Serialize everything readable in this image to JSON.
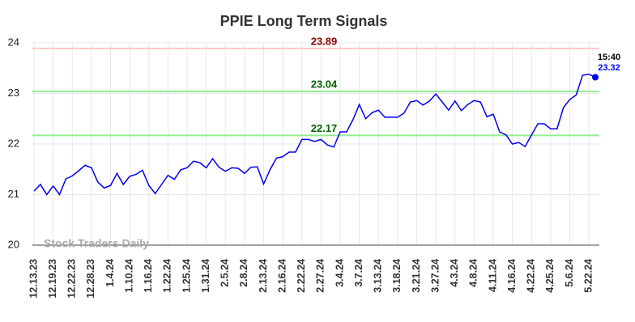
{
  "chart_data": {
    "type": "line",
    "title": "PPIE Long Term Signals",
    "categories": [
      "12.13.23",
      null,
      null,
      "12.19.23",
      null,
      null,
      "12.22.23",
      null,
      null,
      "12.28.23",
      null,
      null,
      "1.4.24",
      null,
      null,
      "1.10.24",
      null,
      null,
      "1.16.24",
      null,
      null,
      "1.22.24",
      null,
      null,
      "1.25.24",
      null,
      null,
      "1.31.24",
      null,
      null,
      "2.5.24",
      null,
      null,
      "2.8.24",
      null,
      null,
      "2.13.24",
      null,
      null,
      "2.16.24",
      null,
      null,
      "2.22.24",
      null,
      null,
      "2.27.24",
      null,
      null,
      "3.4.24",
      null,
      null,
      "3.7.24",
      null,
      null,
      "3.13.24",
      null,
      null,
      "3.18.24",
      null,
      null,
      "3.21.24",
      null,
      null,
      "3.27.24",
      null,
      null,
      "4.3.24",
      null,
      null,
      "4.8.24",
      null,
      null,
      "4.11.24",
      null,
      null,
      "4.16.24",
      null,
      null,
      "4.22.24",
      null,
      null,
      "4.25.24",
      null,
      null,
      "5.6.24",
      null,
      null,
      "5.22.24",
      null
    ],
    "values": [
      21.07,
      21.2,
      21.0,
      21.17,
      21.0,
      21.31,
      21.37,
      21.47,
      21.58,
      21.53,
      21.25,
      21.13,
      21.18,
      21.42,
      21.2,
      21.36,
      21.4,
      21.48,
      21.18,
      21.02,
      21.2,
      21.38,
      21.3,
      21.49,
      21.53,
      21.66,
      21.63,
      21.53,
      21.71,
      21.54,
      21.46,
      21.53,
      21.52,
      21.42,
      21.54,
      21.55,
      21.21,
      21.49,
      21.72,
      21.75,
      21.84,
      21.84,
      22.09,
      22.09,
      22.05,
      22.09,
      21.98,
      21.94,
      22.24,
      22.24,
      22.48,
      22.78,
      22.5,
      22.62,
      22.67,
      22.53,
      22.53,
      22.53,
      22.61,
      22.83,
      22.86,
      22.77,
      22.85,
      22.99,
      22.83,
      22.67,
      22.85,
      22.66,
      22.78,
      22.86,
      22.83,
      22.54,
      22.59,
      22.24,
      22.18,
      22.0,
      22.03,
      21.95,
      22.18,
      22.4,
      22.4,
      22.3,
      22.3,
      22.72,
      22.88,
      22.97,
      23.36,
      23.38,
      23.32
    ],
    "color": "#0000ee",
    "ylim": [
      20,
      24
    ],
    "yticks": [
      20,
      21,
      22,
      23,
      24
    ],
    "grid": true,
    "levels": [
      {
        "value": 23.89,
        "color": "#ffc8c8",
        "label_color": "#8b0000"
      },
      {
        "value": 23.04,
        "color": "#90ee90",
        "label_color": "#006400"
      },
      {
        "value": 22.17,
        "color": "#90ee90",
        "label_color": "#006400"
      }
    ],
    "time_label": "15:40",
    "watermark": "Stock Traders Daily"
  }
}
